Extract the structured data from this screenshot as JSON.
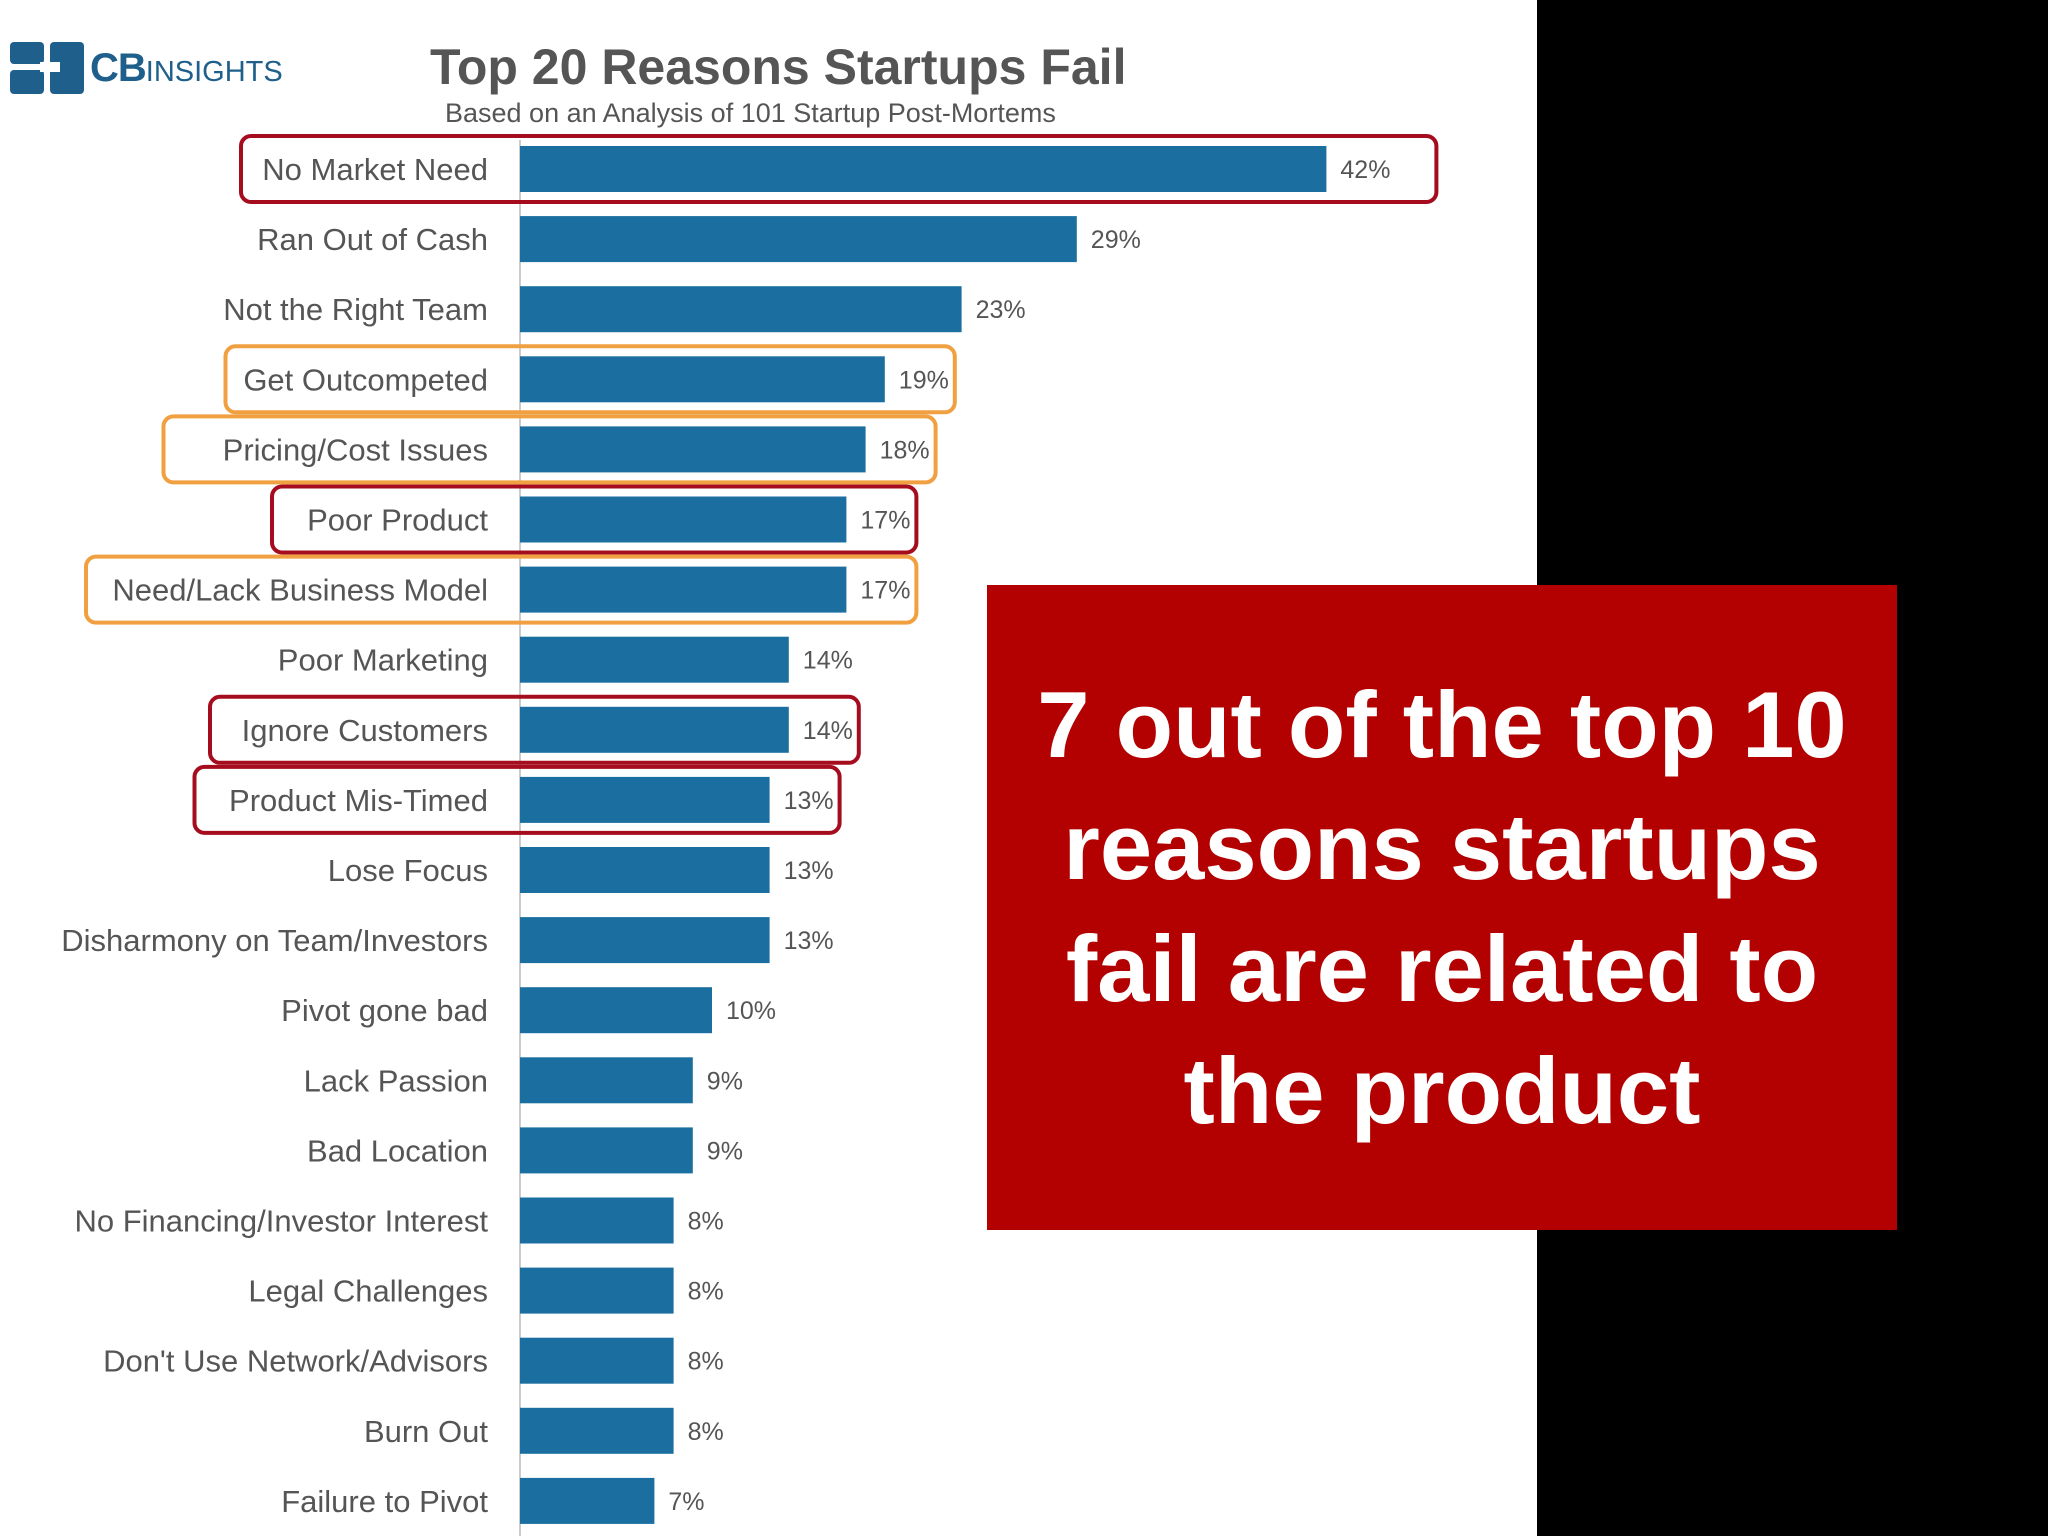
{
  "brand": {
    "logo_bold": "CB",
    "logo_light": "INSIGHTS"
  },
  "chart_data": {
    "type": "bar",
    "orientation": "horizontal",
    "title": "Top 20 Reasons Startups Fail",
    "subtitle": "Based on an Analysis of 101 Startup Post-Mortems",
    "categories": [
      "No Market Need",
      "Ran Out of Cash",
      "Not the Right Team",
      "Get Outcompeted",
      "Pricing/Cost Issues",
      "Poor Product",
      "Need/Lack Business Model",
      "Poor Marketing",
      "Ignore Customers",
      "Product Mis-Timed",
      "Lose Focus",
      "Disharmony on Team/Investors",
      "Pivot gone bad",
      "Lack Passion",
      "Bad Location",
      "No Financing/Investor Interest",
      "Legal Challenges",
      "Don't Use Network/Advisors",
      "Burn Out",
      "Failure to Pivot"
    ],
    "values": [
      42,
      29,
      23,
      19,
      18,
      17,
      17,
      14,
      14,
      13,
      13,
      13,
      10,
      9,
      9,
      8,
      8,
      8,
      8,
      7
    ],
    "value_labels": [
      "42%",
      "29%",
      "23%",
      "19%",
      "18%",
      "17%",
      "17%",
      "14%",
      "14%",
      "13%",
      "13%",
      "13%",
      "10%",
      "9%",
      "9%",
      "8%",
      "8%",
      "8%",
      "8%",
      "7%"
    ],
    "highlights": [
      {
        "category": "No Market Need",
        "color": "#a50d1e"
      },
      {
        "category": "Get Outcompeted",
        "color": "#f0a040"
      },
      {
        "category": "Pricing/Cost Issues",
        "color": "#f0a040"
      },
      {
        "category": "Poor Product",
        "color": "#a50d1e"
      },
      {
        "category": "Need/Lack Business Model",
        "color": "#f0a040"
      },
      {
        "category": "Ignore Customers",
        "color": "#a50d1e"
      },
      {
        "category": "Product Mis-Timed",
        "color": "#a50d1e"
      }
    ],
    "bar_color": "#1a6fa0",
    "grid": false,
    "legend": "none"
  },
  "callout": {
    "text": "7 out of the top 10 reasons startups fail are related to the product",
    "background": "#b30000",
    "color": "#ffffff"
  }
}
